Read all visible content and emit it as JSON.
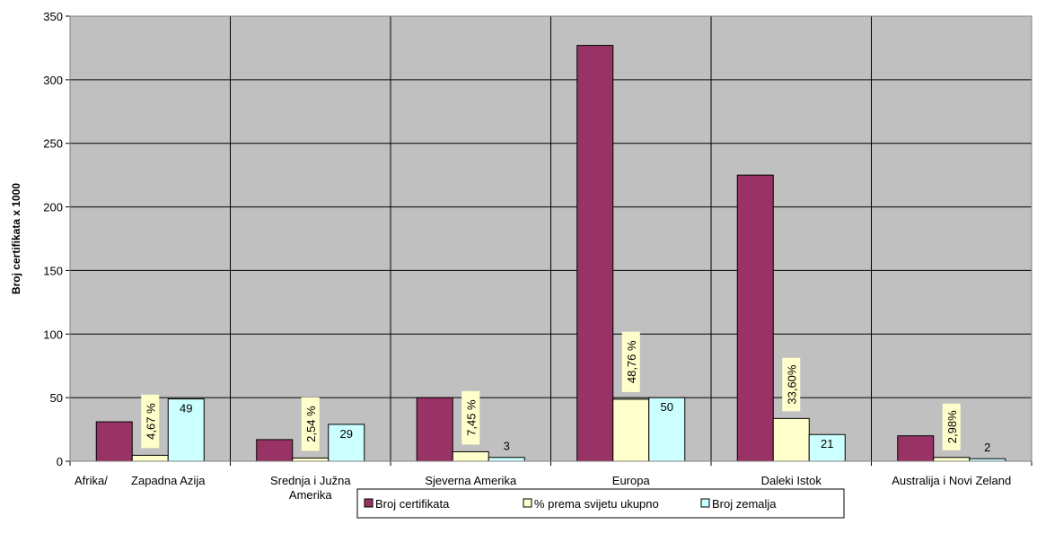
{
  "chart_data": {
    "type": "bar",
    "ylabel": "Broj certifikata x 1000",
    "ylim": [
      0,
      350
    ],
    "yticks": [
      0,
      50,
      100,
      150,
      200,
      250,
      300,
      350
    ],
    "categories": [
      [
        "Afrika/",
        "Zapadna Azija"
      ],
      [
        "Srednja i Južna",
        "Amerika"
      ],
      [
        "Sjeverna Amerika"
      ],
      [
        "Europa"
      ],
      [
        "Daleki Istok"
      ],
      [
        "Australija i Novi Zeland"
      ]
    ],
    "series": [
      {
        "name": "Broj certifikata",
        "color": "#993366",
        "values": [
          31,
          17,
          50,
          327,
          225,
          20
        ],
        "labels": [
          "",
          "",
          "",
          "",
          "",
          ""
        ]
      },
      {
        "name": "% prema svijetu ukupno",
        "color": "#FFFFCC",
        "values": [
          4.67,
          2.54,
          7.45,
          48.76,
          33.6,
          2.98
        ],
        "labels": [
          "4,67 %",
          "2,54 %",
          "7,45 %",
          "48,76 %",
          "33,60%",
          "2,98%"
        ]
      },
      {
        "name": "Broj zemalja",
        "color": "#CCFFFF",
        "values": [
          49,
          29,
          3,
          50,
          21,
          2
        ],
        "labels": [
          "49",
          "29",
          "3",
          "50",
          "21",
          "2"
        ]
      }
    ],
    "plot_background": "#C0C0C0",
    "grid": true,
    "legend": "bottom"
  }
}
